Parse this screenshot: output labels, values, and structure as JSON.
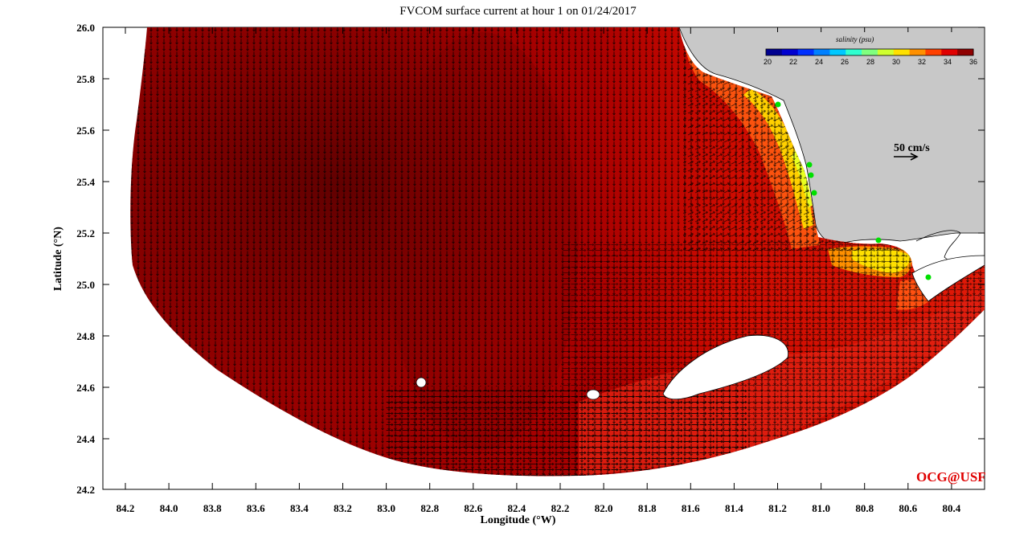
{
  "title": "FVCOM surface current at hour 1 on 01/24/2017",
  "xlabel": "Longitude (°W)",
  "ylabel": "Latitude (°N)",
  "credit": "OCG@USF",
  "colorbar": {
    "title": "salinity (psu)",
    "ticks": [
      "20",
      "22",
      "24",
      "26",
      "28",
      "30",
      "32",
      "34",
      "36"
    ],
    "colors": [
      "#00008f",
      "#0000d0",
      "#0030ff",
      "#0080ff",
      "#00c8ff",
      "#30ffd0",
      "#80ff80",
      "#d0ff30",
      "#ffe000",
      "#ff9000",
      "#ff4000",
      "#e00000",
      "#8f0000"
    ]
  },
  "scale_arrow": {
    "label": "50 cm/s"
  },
  "chart_data": {
    "type": "map",
    "x_ticks": [
      "84.2",
      "84.0",
      "83.8",
      "83.6",
      "83.4",
      "83.2",
      "83.0",
      "82.8",
      "82.6",
      "82.4",
      "82.2",
      "82.0",
      "81.8",
      "81.6",
      "81.4",
      "81.2",
      "81.0",
      "80.8",
      "80.6",
      "80.4"
    ],
    "y_ticks": [
      "26.0",
      "25.8",
      "25.6",
      "25.4",
      "25.2",
      "25.0",
      "24.8",
      "24.6",
      "24.4",
      "24.2"
    ],
    "xlim": [
      84.3,
      80.4
    ],
    "ylim": [
      24.2,
      26.0
    ],
    "field": "salinity",
    "colors": {
      "deep": "#8c0000",
      "mid": "#c00000",
      "shelf": "#e01808",
      "coastal": "#ff6a10",
      "fresh": "#ffe600",
      "land": "#c8c8c8"
    }
  }
}
